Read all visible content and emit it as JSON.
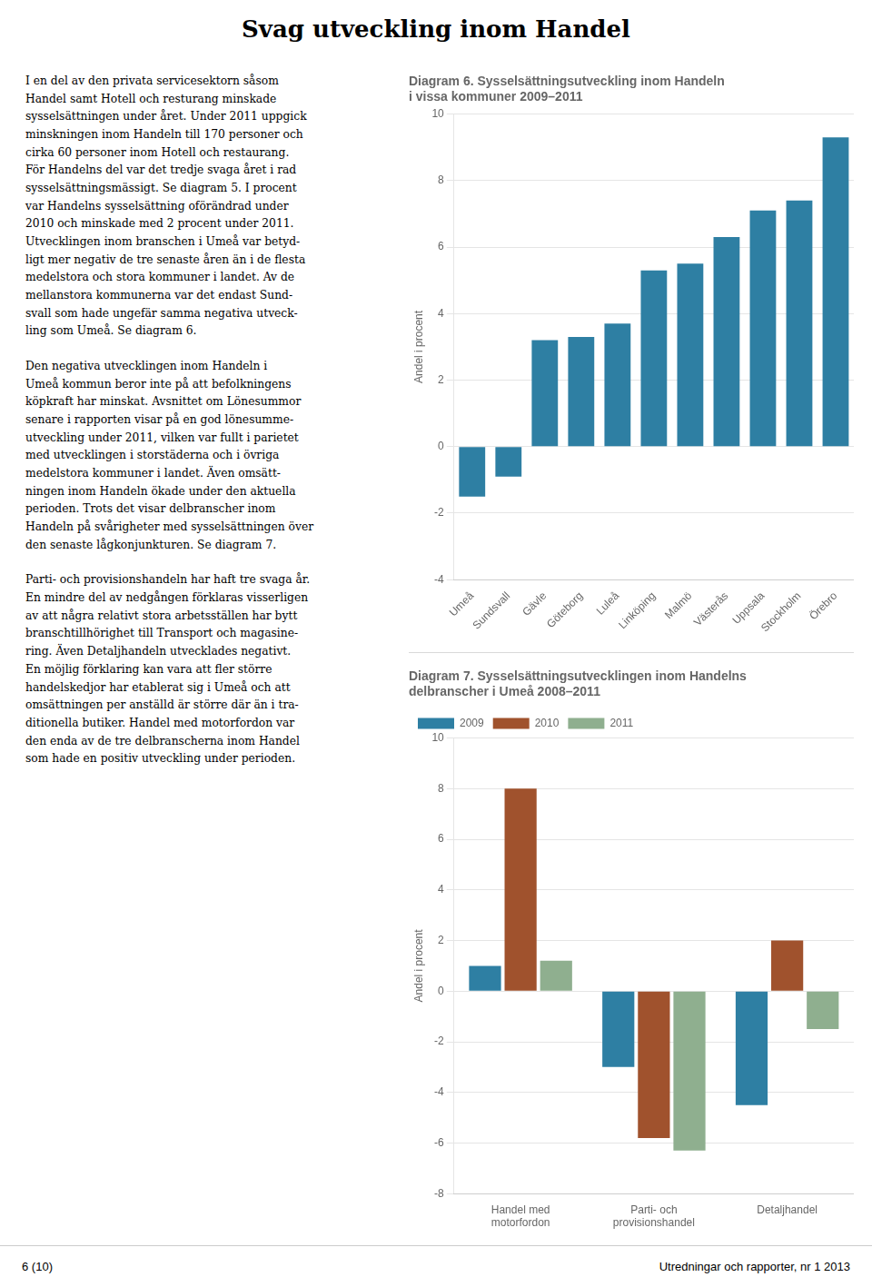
{
  "title": "Svag utveckling inom Handel",
  "text": [
    [
      "I en del av den privata servicesektorn såsom",
      "Handel samt Hotell och resturang minskade",
      "sysselsättningen under året. Under 2011 uppgick",
      "minskningen inom Handeln till 170 personer och",
      "cirka 60 personer inom Hotell och restaurang.",
      "För Handelns del var det tredje svaga året i rad",
      "sysselsättningsmässigt. Se diagram 5. I procent",
      "var Handelns sysselsättning oförändrad under",
      "2010 och minskade med 2 procent under 2011.",
      "Utvecklingen inom branschen i Umeå var betyd-",
      "ligt mer negativ de tre senaste åren än i de flesta",
      "medelstora och stora kommuner i landet. Av de",
      "mellanstora kommunerna var det endast Sund-",
      "svall som hade ungefär samma negativa utveck-",
      "ling som Umeå. Se diagram 6."
    ],
    [
      "Den negativa utvecklingen inom Handeln i",
      "Umeå kommun beror inte på att befolkningens",
      "köpkraft har minskat. Avsnittet om Lönesummor",
      "senare i rapporten visar på en god lönesumme-",
      "utveckling under 2011, vilken var fullt i parietet",
      "med utvecklingen i storstäderna och i övriga",
      "medelstora kommuner i landet. Även omsätt-",
      "ningen inom Handeln ökade under den aktuella",
      "perioden. Trots det visar delbranscher inom",
      "Handeln på svårigheter med sysselsättningen över",
      "den senaste lågkonjunkturen. Se diagram 7."
    ],
    [
      "Parti- och provisionshandeln har haft tre svaga år.",
      "En mindre del av nedgången förklaras visserligen",
      "av att några relativt stora arbetsställen har bytt",
      "branschtillhörighet till Transport och magasine-",
      "ring. Även Detaljhandeln utvecklades negativt.",
      "En möjlig förklaring kan vara att fler större",
      "handelskedjor har etablerat sig i Umeå och att",
      "omsättningen per anställd är större där än i tra-",
      "ditionella butiker. Handel med motorfordon var",
      "den enda av de tre delbranscherna inom Handel",
      "som hade en positiv utveckling under perioden."
    ]
  ],
  "footer": [
    "6 (10)",
    "Utredningar och rapporter, nr 1 2013"
  ],
  "chart_data": [
    {
      "type": "bar",
      "title": [
        "Diagram 6. Sysselsättningsutveckling inom Handeln",
        "i vissa kommuner 2009–2011"
      ],
      "ylabel": "Andel i procent",
      "categories": [
        "Umeå",
        "Sundsvall",
        "Gävle",
        "Göteborg",
        "Luleå",
        "Linköping",
        "Malmö",
        "Västerås",
        "Uppsala",
        "Stockholm",
        "Örebro"
      ],
      "values": [
        -1.5,
        -0.9,
        3.2,
        3.3,
        3.7,
        5.3,
        5.5,
        6.3,
        7.1,
        7.4,
        9.3
      ],
      "color": "#2e7fa3",
      "ylim": [
        -4,
        10
      ],
      "yticks": [
        -4,
        -2,
        0,
        2,
        4,
        6,
        8,
        10
      ],
      "grid": true
    },
    {
      "type": "bar",
      "title": [
        "Diagram 7. Sysselsättningsutvecklingen inom Handelns",
        "delbranscher i Umeå 2008–2011"
      ],
      "ylabel": "Andel i procent",
      "categories": [
        "Handel med\nmotorfordon",
        "Parti- och\nprovisionshandel",
        "Detaljhandel"
      ],
      "series": [
        {
          "name": "2009",
          "color": "#2e7fa3",
          "values": [
            1.0,
            -3.0,
            -4.5
          ]
        },
        {
          "name": "2010",
          "color": "#a0522d",
          "values": [
            8.0,
            -5.8,
            2.0
          ]
        },
        {
          "name": "2011",
          "color": "#8faf8f",
          "values": [
            1.2,
            -6.3,
            -1.5
          ]
        }
      ],
      "ylim": [
        -8,
        10
      ],
      "yticks": [
        -8,
        -6,
        -4,
        -2,
        0,
        2,
        4,
        6,
        8,
        10
      ],
      "grid": true,
      "legend": "upper left"
    }
  ]
}
